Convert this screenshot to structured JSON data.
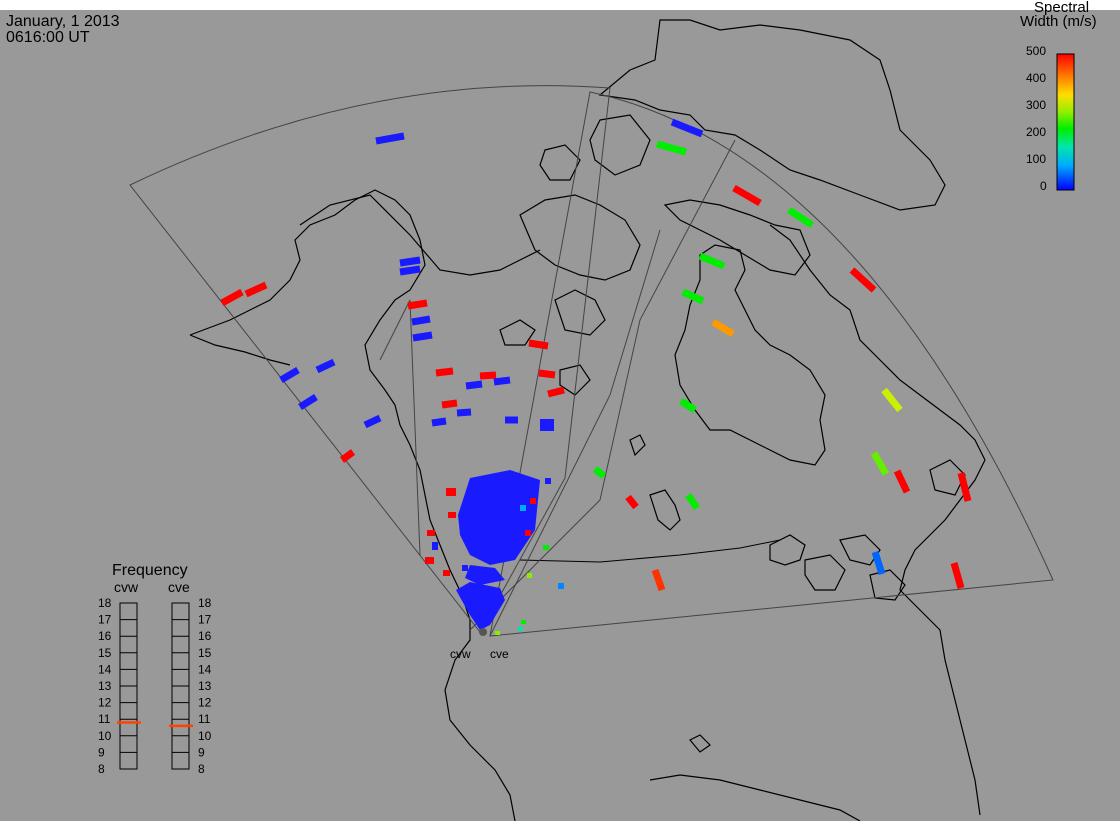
{
  "header": {
    "date": "January, 1 2013",
    "time": "0616:00 UT"
  },
  "colorbar": {
    "title_line1": "Spectral",
    "title_line2": "Width (m/s)",
    "ticks": [
      "500",
      "400",
      "300",
      "200",
      "100",
      "0"
    ],
    "colors": [
      "#0000ff",
      "#0099ff",
      "#00e6cc",
      "#00ee00",
      "#aaee00",
      "#ffdd00",
      "#ff8800",
      "#ff0000"
    ]
  },
  "frequency": {
    "title": "Frequency",
    "left_label": "cvw",
    "right_label": "cve",
    "ticks": [
      "18",
      "17",
      "16",
      "15",
      "14",
      "13",
      "12",
      "11",
      "10",
      "9",
      "8"
    ],
    "cvw_value": 10.8,
    "cve_value": 10.6,
    "marker_color": "#ff4400"
  },
  "stations": {
    "west": "cvw",
    "east": "cve"
  },
  "colors": {
    "background": "#999999",
    "low": "#1a1aff",
    "high": "#ff0000",
    "mid": "#00ee00"
  }
}
